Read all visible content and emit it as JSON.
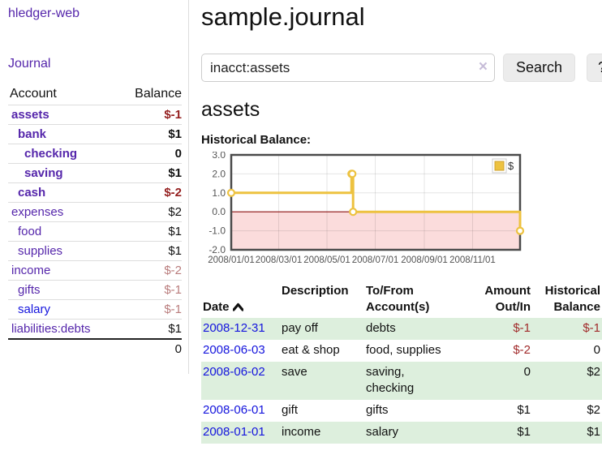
{
  "colors": {
    "link_purple": "#5526ab",
    "link_blue": "#1414dd",
    "neg_strong": "#941f1f",
    "neg_soft": "#b97c7c",
    "register_neg": "#a12b2b",
    "row_green": "#ddefdd",
    "series_yellow": "#EDC240",
    "zero_line": "#8b1010",
    "negative_area": "#fbdcdc"
  },
  "sidebar": {
    "app_link": "hledger-web",
    "journal_link": "Journal",
    "table": {
      "account_header": "Account",
      "balance_header": "Balance",
      "rows": [
        {
          "account": "assets",
          "depth": 1,
          "bold": true,
          "balance": "$-1",
          "balance_style": "neg-strong"
        },
        {
          "account": "bank",
          "depth": 2,
          "bold": true,
          "balance": "$1",
          "balance_style": "pos"
        },
        {
          "account": "checking",
          "depth": 3,
          "bold": true,
          "balance": "0",
          "balance_style": "pos"
        },
        {
          "account": "saving",
          "depth": 3,
          "bold": true,
          "balance": "$1",
          "balance_style": "pos"
        },
        {
          "account": "cash",
          "depth": 2,
          "bold": true,
          "balance": "$-2",
          "balance_style": "neg-strong"
        },
        {
          "account": "expenses",
          "depth": 1,
          "bold": false,
          "balance": "$2",
          "balance_style": "pos"
        },
        {
          "account": "food",
          "depth": 2,
          "bold": false,
          "balance": "$1",
          "balance_style": "pos"
        },
        {
          "account": "supplies",
          "depth": 2,
          "bold": false,
          "balance": "$1",
          "balance_style": "pos"
        },
        {
          "account": "income",
          "depth": 1,
          "bold": false,
          "balance": "$-2",
          "balance_style": "neg-soft"
        },
        {
          "account": "gifts",
          "depth": 2,
          "bold": false,
          "balance": "$-1",
          "balance_style": "neg-soft"
        },
        {
          "account": "salary",
          "depth": 2,
          "bold": false,
          "balance": "$-1",
          "balance_style": "neg-soft",
          "link_color": "blue"
        },
        {
          "account": "liabilities:debts",
          "depth": 1,
          "bold": false,
          "balance": "$1",
          "balance_style": "pos"
        }
      ],
      "total": "0"
    }
  },
  "header": {
    "title": "sample.journal"
  },
  "search": {
    "query": "inacct:assets",
    "clear_icon": "×",
    "search_label": "Search",
    "help_label": "?"
  },
  "account_page": {
    "title": "assets",
    "chart_label": "Historical Balance:"
  },
  "chart_data": {
    "type": "line",
    "title": "Historical Balance",
    "step": true,
    "x_range": [
      "2008-01-01",
      "2008-12-31"
    ],
    "ylim": [
      -2,
      3
    ],
    "y_ticks": [
      "3.0",
      "2.0",
      "1.0",
      "0.0",
      "-1.0",
      "-2.0"
    ],
    "x_tick_labels": [
      "2008/01/01",
      "2008/03/01",
      "2008/05/01",
      "2008/07/01",
      "2008/09/01",
      "2008/11/01"
    ],
    "series": [
      {
        "name": "$",
        "color": "#EDC240",
        "points": [
          [
            "2008-01-01",
            1
          ],
          [
            "2008-06-01",
            2
          ],
          [
            "2008-06-02",
            2
          ],
          [
            "2008-06-03",
            0
          ],
          [
            "2008-12-31",
            -1
          ]
        ]
      }
    ],
    "legend": {
      "label": "$",
      "position": "top-right"
    },
    "grid": true,
    "negative_region_fill": "#fbdcdc",
    "zero_line_color": "#8b1010"
  },
  "register": {
    "columns": [
      "Date",
      "Description",
      "To/From\nAccount(s)",
      "Amount\nOut/In",
      "Historical\nBalance"
    ],
    "rows": [
      {
        "date": "2008-12-31",
        "description": "pay off",
        "accounts": "debts",
        "amount": "$-1",
        "amount_neg": true,
        "balance": "$-1",
        "balance_neg": true,
        "alt": true
      },
      {
        "date": "2008-06-03",
        "description": "eat & shop",
        "accounts": "food, supplies",
        "amount": "$-2",
        "amount_neg": true,
        "balance": "0",
        "balance_neg": false,
        "alt": false
      },
      {
        "date": "2008-06-02",
        "description": "save",
        "accounts": "saving,\nchecking",
        "amount": "0",
        "amount_neg": false,
        "balance": "$2",
        "balance_neg": false,
        "alt": true
      },
      {
        "date": "2008-06-01",
        "description": "gift",
        "accounts": "gifts",
        "amount": "$1",
        "amount_neg": false,
        "balance": "$2",
        "balance_neg": false,
        "alt": false
      },
      {
        "date": "2008-01-01",
        "description": "income",
        "accounts": "salary",
        "amount": "$1",
        "amount_neg": false,
        "balance": "$1",
        "balance_neg": false,
        "alt": true
      }
    ]
  }
}
